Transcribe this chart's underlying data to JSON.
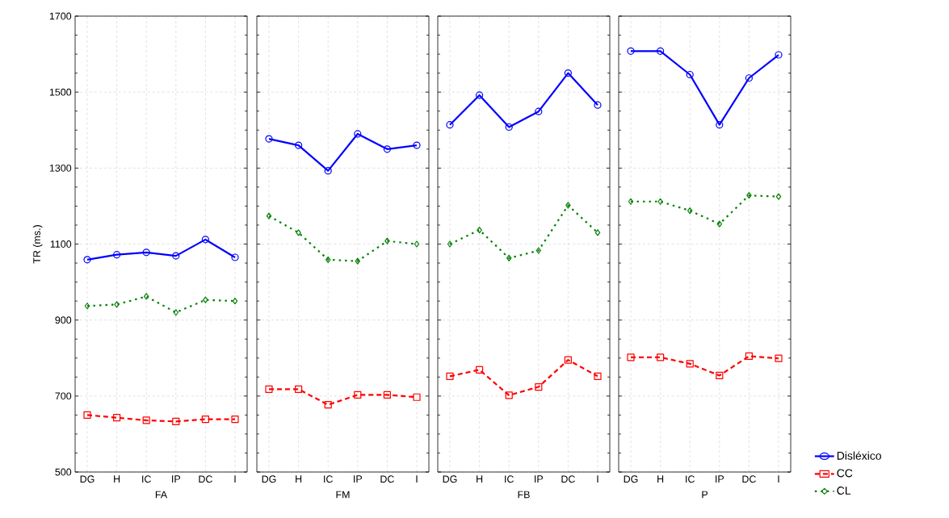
{
  "chart_data": [
    {
      "type": "line",
      "xlabel": "FA",
      "ylabel": "TR (ms.)",
      "categories": [
        "DG",
        "H",
        "IC",
        "IP",
        "DC",
        "I"
      ],
      "ylim": [
        500,
        1700
      ],
      "yticks": [
        500,
        700,
        900,
        1100,
        1300,
        1500,
        1700
      ],
      "grid": true,
      "series": [
        {
          "color": "#0000ff",
          "marker": "circle",
          "line_style": "solid",
          "values": [
            1059,
            1072,
            1078,
            1069,
            1112,
            1065
          ]
        },
        {
          "color": "#ff0000",
          "marker": "square",
          "line_style": "dashed",
          "values": [
            650,
            643,
            636,
            633,
            639,
            639
          ]
        },
        {
          "color": "#008000",
          "marker": "diamond",
          "line_style": "dotted",
          "values": [
            937,
            941,
            962,
            920,
            953,
            950
          ]
        }
      ]
    },
    {
      "type": "line",
      "xlabel": "FM",
      "categories": [
        "DG",
        "H",
        "IC",
        "IP",
        "DC",
        "I"
      ],
      "ylim": [
        500,
        1700
      ],
      "yticks": [
        500,
        700,
        900,
        1100,
        1300,
        1500,
        1700
      ],
      "grid": true,
      "tick_labels": "x",
      "series": [
        {
          "color": "#0000ff",
          "marker": "circle",
          "line_style": "solid",
          "values": [
            1377,
            1360,
            1293,
            1390,
            1350,
            1360
          ]
        },
        {
          "color": "#ff0000",
          "marker": "square",
          "line_style": "dashed",
          "values": [
            718,
            718,
            677,
            703,
            703,
            697
          ]
        },
        {
          "color": "#008000",
          "marker": "diamond",
          "line_style": "dotted",
          "values": [
            1174,
            1130,
            1059,
            1055,
            1108,
            1100
          ]
        }
      ]
    },
    {
      "type": "line",
      "xlabel": "FB",
      "categories": [
        "DG",
        "H",
        "IC",
        "IP",
        "DC",
        "I"
      ],
      "ylim": [
        500,
        1700
      ],
      "yticks": [
        500,
        700,
        900,
        1100,
        1300,
        1500,
        1700
      ],
      "grid": true,
      "tick_labels": "x",
      "series": [
        {
          "color": "#0000ff",
          "marker": "circle",
          "line_style": "solid",
          "values": [
            1414,
            1492,
            1408,
            1449,
            1550,
            1466
          ]
        },
        {
          "color": "#ff0000",
          "marker": "square",
          "line_style": "dashed",
          "values": [
            752,
            769,
            702,
            724,
            795,
            752
          ]
        },
        {
          "color": "#008000",
          "marker": "diamond",
          "line_style": "dotted",
          "values": [
            1100,
            1137,
            1063,
            1083,
            1202,
            1130
          ]
        }
      ]
    },
    {
      "type": "line",
      "xlabel": "P",
      "categories": [
        "DG",
        "H",
        "IC",
        "IP",
        "DC",
        "I"
      ],
      "ylim": [
        500,
        1700
      ],
      "yticks": [
        500,
        700,
        900,
        1100,
        1300,
        1500,
        1700
      ],
      "grid": true,
      "tick_labels": "x",
      "legend": "bottom right",
      "series": [
        {
          "name": "Disléxico",
          "color": "#0000ff",
          "marker": "circle",
          "line_style": "solid",
          "values": [
            1608,
            1608,
            1546,
            1414,
            1537,
            1598
          ]
        },
        {
          "name": "CC",
          "color": "#ff0000",
          "marker": "square",
          "line_style": "dashed",
          "values": [
            802,
            802,
            785,
            754,
            805,
            799
          ]
        },
        {
          "name": "CL",
          "color": "#008000",
          "marker": "diamond",
          "line_style": "dotted",
          "values": [
            1212,
            1212,
            1188,
            1153,
            1228,
            1225
          ]
        }
      ]
    }
  ]
}
